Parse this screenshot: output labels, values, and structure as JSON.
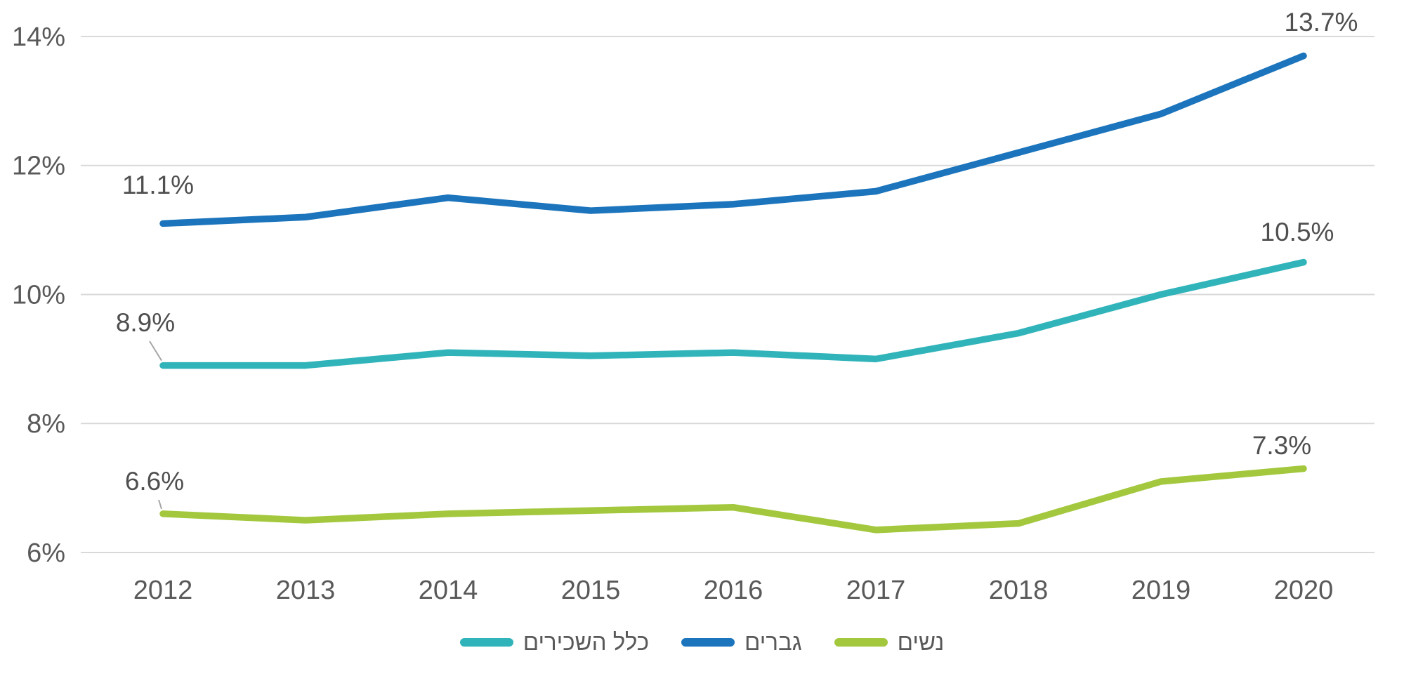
{
  "chart_data": {
    "type": "line",
    "title": "",
    "categories": [
      "2012",
      "2013",
      "2014",
      "2015",
      "2016",
      "2017",
      "2018",
      "2019",
      "2020"
    ],
    "series": [
      {
        "id": "all-employees",
        "label": "כלל השכירים",
        "color": "#30b4ba",
        "values": [
          8.9,
          8.9,
          9.1,
          9.05,
          9.1,
          9.0,
          9.4,
          10.0,
          10.5
        ]
      },
      {
        "id": "men",
        "label": "גברים",
        "color": "#1b74bc",
        "values": [
          11.1,
          11.2,
          11.5,
          11.3,
          11.4,
          11.6,
          12.2,
          12.8,
          13.7
        ]
      },
      {
        "id": "women",
        "label": "נשים",
        "color": "#a3c83e",
        "values": [
          6.6,
          6.5,
          6.6,
          6.65,
          6.7,
          6.35,
          6.45,
          7.1,
          7.3
        ]
      }
    ],
    "y_ticks": [
      {
        "value": 6,
        "label": "6%"
      },
      {
        "value": 8,
        "label": "8%"
      },
      {
        "value": 10,
        "label": "10%"
      },
      {
        "value": 12,
        "label": "12%"
      },
      {
        "value": 14,
        "label": "14%"
      }
    ],
    "ylim": [
      6,
      14
    ],
    "grid": true,
    "legend_position": "bottom",
    "annotations": [
      {
        "text": "11.1%",
        "series": "men",
        "point": "first",
        "leader": false
      },
      {
        "text": "13.7%",
        "series": "men",
        "point": "last",
        "leader": false
      },
      {
        "text": "8.9%",
        "series": "all-employees",
        "point": "first",
        "leader": true
      },
      {
        "text": "10.5%",
        "series": "all-employees",
        "point": "last",
        "leader": false
      },
      {
        "text": "6.6%",
        "series": "women",
        "point": "first",
        "leader": true
      },
      {
        "text": "7.3%",
        "series": "women",
        "point": "last",
        "leader": false
      }
    ]
  },
  "colors": {
    "gridline": "#d9d9d9",
    "axis_text": "#595959",
    "data_label_text": "#4f4f4f",
    "leader_line": "#a6a6a6",
    "background": "#ffffff"
  }
}
